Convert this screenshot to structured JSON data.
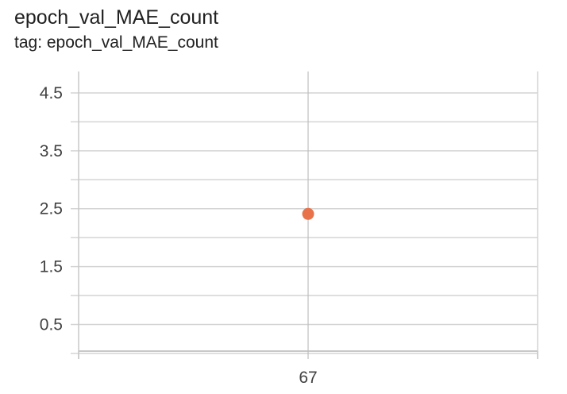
{
  "title": "epoch_val_MAE_count",
  "subtitle": "tag: epoch_val_MAE_count",
  "chart_data": {
    "type": "scatter",
    "title": "epoch_val_MAE_count",
    "subtitle": "tag: epoch_val_MAE_count",
    "xlabel": "",
    "ylabel": "",
    "x": [
      67
    ],
    "y": [
      2.41
    ],
    "xlim": [
      66,
      68
    ],
    "ylim": [
      0.04,
      4.87
    ],
    "x_ticks": [
      "67"
    ],
    "y_ticks": [
      "0.5",
      "1.5",
      "2.5",
      "3.5",
      "4.5"
    ],
    "y_minor_gridlines": [
      0.0,
      1.0,
      2.0,
      3.0,
      4.0
    ],
    "grid": true,
    "legend": "none",
    "point_color": "#e8734a",
    "grid_color": "#d4d4d4",
    "axis_color": "#c8c8c8"
  }
}
